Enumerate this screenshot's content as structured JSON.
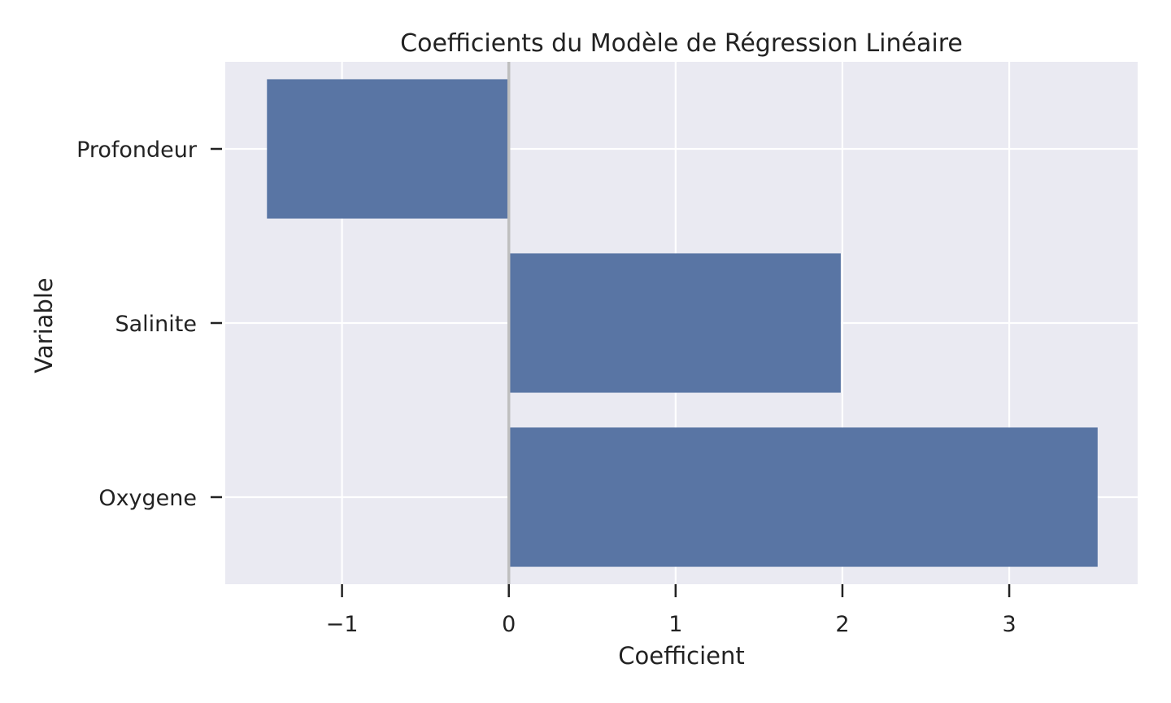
{
  "chart_data": {
    "type": "bar",
    "orientation": "horizontal",
    "title": "Coefficients du Modèle de Régression Linéaire",
    "xlabel": "Coefficient",
    "ylabel": "Variable",
    "categories": [
      "Profondeur",
      "Salinite",
      "Oxygene"
    ],
    "values": [
      -1.45,
      1.99,
      3.53
    ],
    "xlim": [
      -1.7,
      3.77
    ],
    "xticks": [
      -1,
      0,
      1,
      2,
      3
    ],
    "xtick_labels": [
      "−1",
      "0",
      "1",
      "2",
      "3"
    ],
    "grid": true,
    "zero_line": true,
    "colors": {
      "bar": "#5975a4",
      "plot_background": "#eaeaf2",
      "grid": "#ffffff",
      "zero_line": "#bfbfbf",
      "text": "#222222"
    }
  }
}
